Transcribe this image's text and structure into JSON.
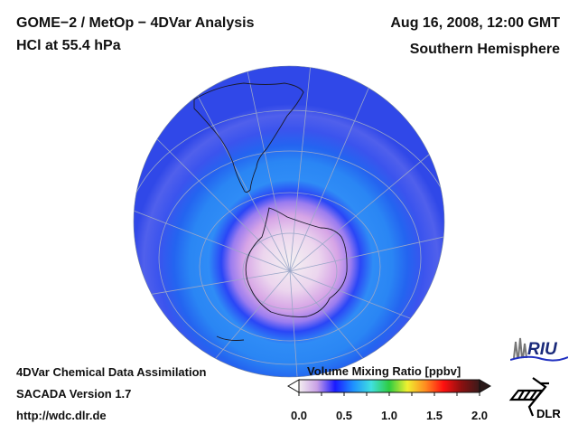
{
  "header": {
    "title_line1": "GOME−2 / MetOp − 4DVar Analysis",
    "title_line2": "HCl at 55.4 hPa",
    "date": "Aug 16, 2008, 12:00 GMT",
    "hemisphere": "Southern Hemisphere"
  },
  "footer": {
    "line1": "4DVar Chemical Data Assimilation",
    "line2": "SACADA Version 1.7",
    "line3": "http://wdc.dlr.de"
  },
  "colorbar": {
    "title": "Volume Mixing Ratio [ppbv]",
    "ticks": [
      "0.0",
      "0.5",
      "1.0",
      "1.5",
      "2.0"
    ],
    "min": 0.0,
    "max": 2.0,
    "colors": [
      "#f4eef0",
      "#c9a0e6",
      "#1a1aff",
      "#1e90ff",
      "#40e0e0",
      "#2ecc40",
      "#f0f030",
      "#ff8c20",
      "#ff1010",
      "#8b1010",
      "#3a1a1a"
    ]
  },
  "logos": {
    "riu": "RIU",
    "dlr": "DLR"
  },
  "map": {
    "projection": "orthographic, south-polar view",
    "variable": "HCl",
    "units": "ppbv",
    "regions": [
      {
        "name": "outer-midlatitude-band",
        "approx_value": 0.3,
        "color": "#3c5cf0"
      },
      {
        "name": "midlatitude-ring",
        "approx_value": 0.4,
        "color": "#2a7cf4"
      },
      {
        "name": "vortex-edge",
        "approx_value": 0.25,
        "color": "#2040ff"
      },
      {
        "name": "vortex-interior",
        "approx_value": 0.1,
        "color": "#d9a6e8"
      },
      {
        "name": "vortex-core",
        "approx_value": 0.0,
        "color": "#f2eef0"
      }
    ]
  }
}
